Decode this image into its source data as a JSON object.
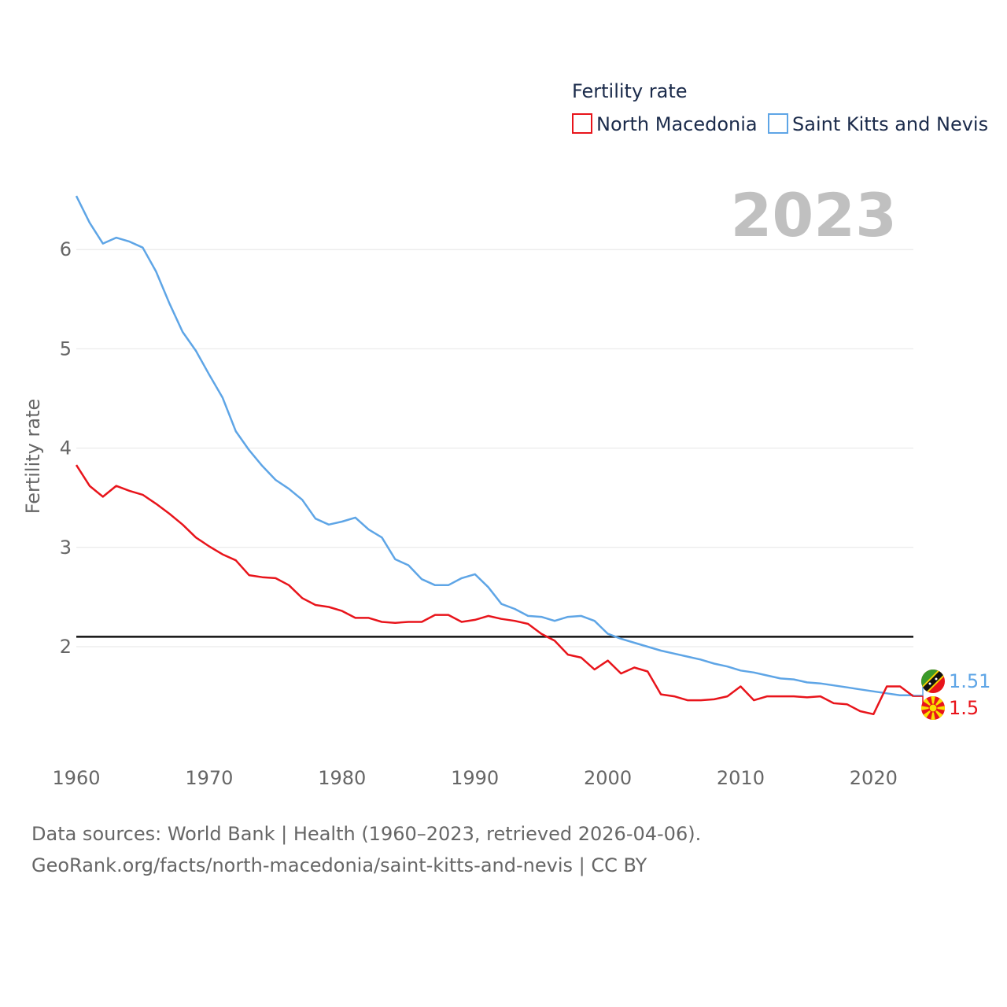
{
  "chart_data": {
    "type": "line",
    "legend_title": "Fertility rate",
    "ylabel": "Fertility rate",
    "current_year": "2023",
    "xlim": [
      1960,
      2023
    ],
    "ylim": [
      1.0,
      6.55
    ],
    "yticks": [
      2,
      3,
      4,
      5,
      6
    ],
    "xticks": [
      1960,
      1970,
      1980,
      1990,
      2000,
      2010,
      2020
    ],
    "reference_line": 2.1,
    "x": [
      1960,
      1961,
      1962,
      1963,
      1964,
      1965,
      1966,
      1967,
      1968,
      1969,
      1970,
      1971,
      1972,
      1973,
      1974,
      1975,
      1976,
      1977,
      1978,
      1979,
      1980,
      1981,
      1982,
      1983,
      1984,
      1985,
      1986,
      1987,
      1988,
      1989,
      1990,
      1991,
      1992,
      1993,
      1994,
      1995,
      1996,
      1997,
      1998,
      1999,
      2000,
      2001,
      2002,
      2003,
      2004,
      2005,
      2006,
      2007,
      2008,
      2009,
      2010,
      2011,
      2012,
      2013,
      2014,
      2015,
      2016,
      2017,
      2018,
      2019,
      2020,
      2021,
      2022,
      2023
    ],
    "series": [
      {
        "name": "North Macedonia",
        "color": "#e8141b",
        "end_label": "1.5",
        "values": [
          3.83,
          3.62,
          3.51,
          3.62,
          3.57,
          3.53,
          3.44,
          3.34,
          3.23,
          3.1,
          3.01,
          2.93,
          2.87,
          2.72,
          2.7,
          2.69,
          2.62,
          2.49,
          2.42,
          2.4,
          2.36,
          2.29,
          2.29,
          2.25,
          2.24,
          2.25,
          2.25,
          2.32,
          2.32,
          2.25,
          2.27,
          2.31,
          2.28,
          2.26,
          2.23,
          2.13,
          2.06,
          1.92,
          1.89,
          1.77,
          1.86,
          1.73,
          1.79,
          1.75,
          1.52,
          1.5,
          1.46,
          1.46,
          1.47,
          1.5,
          1.6,
          1.46,
          1.5,
          1.5,
          1.5,
          1.49,
          1.5,
          1.43,
          1.42,
          1.35,
          1.32,
          1.6,
          1.6,
          1.5
        ]
      },
      {
        "name": "Saint Kitts and Nevis",
        "color": "#5ea5e6",
        "end_label": "1.51",
        "values": [
          6.54,
          6.27,
          6.06,
          6.12,
          6.08,
          6.02,
          5.78,
          5.46,
          5.17,
          4.98,
          4.74,
          4.51,
          4.17,
          3.98,
          3.82,
          3.68,
          3.59,
          3.48,
          3.29,
          3.23,
          3.26,
          3.3,
          3.18,
          3.1,
          2.88,
          2.82,
          2.68,
          2.62,
          2.62,
          2.69,
          2.73,
          2.6,
          2.43,
          2.38,
          2.31,
          2.3,
          2.26,
          2.3,
          2.31,
          2.26,
          2.13,
          2.08,
          2.04,
          2.0,
          1.96,
          1.93,
          1.9,
          1.87,
          1.83,
          1.8,
          1.76,
          1.74,
          1.71,
          1.68,
          1.67,
          1.64,
          1.63,
          1.61,
          1.59,
          1.57,
          1.55,
          1.53,
          1.51,
          1.51
        ]
      }
    ]
  },
  "legend": {
    "title": "Fertility rate"
  },
  "footer": {
    "line1": "Data sources: World Bank | Health (1960–2023, retrieved 2026-04-06).",
    "line2": "GeoRank.org/facts/north-macedonia/saint-kitts-and-nevis | CC BY"
  }
}
